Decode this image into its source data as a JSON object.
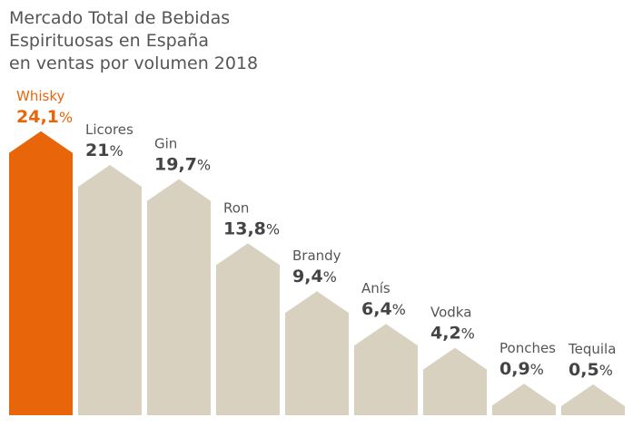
{
  "title_lines": [
    "Mercado Total de Bebidas",
    "Espirituosas en España",
    "en ventas por volumen 2018"
  ],
  "colors": {
    "highlight": "#E8650A",
    "bar": "#D8D1C0",
    "label": "#555555",
    "value": "#444444"
  },
  "chart_data": {
    "type": "bar",
    "title": "Mercado Total de Bebidas Espirituosas en España en ventas por volumen 2018",
    "categories": [
      "Whisky",
      "Licores",
      "Gin",
      "Ron",
      "Brandy",
      "Anís",
      "Vodka",
      "Ponches",
      "Tequila"
    ],
    "values": [
      24.1,
      21,
      19.7,
      13.8,
      9.4,
      6.4,
      4.2,
      0.9,
      0.5
    ],
    "value_labels": [
      "24,1",
      "21",
      "19,7",
      "13,8",
      "9,4",
      "6,4",
      "4,2",
      "0,9",
      "0,5"
    ],
    "unit": "%",
    "highlight_index": 0,
    "xlabel": "",
    "ylabel": "",
    "ylim": [
      0,
      25
    ]
  }
}
